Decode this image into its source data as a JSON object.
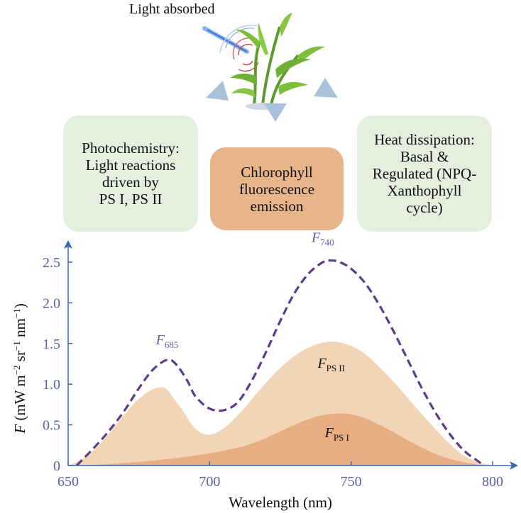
{
  "header": {
    "light_label": "Light absorbed"
  },
  "boxes": {
    "photochemistry": "Photochemistry:\nLight reactions\ndriven by\nPS I, PS II",
    "fluorescence": "Chlorophyll\nfluorescence\nemission",
    "heat": "Heat dissipation:\nBasal &\nRegulated (NPQ-\nXanthophyll\ncycle)"
  },
  "colors": {
    "axis": "#3a66b0",
    "tick_label": "#5b5fa6",
    "total_dash": "#5a3e8e",
    "ps2_fill": "#f2d4b6",
    "ps1_fill": "#e7ae82",
    "green_box": "#e5efdd",
    "orange_box": "#e8b48a"
  },
  "chart_data": {
    "type": "area",
    "xlabel": "Wavelength (nm)",
    "ylabel_symbol": "F",
    "ylabel_text": " (mW m",
    "ylabel_sup1": "−2",
    "ylabel_mid1": " sr",
    "ylabel_sup2": "−1",
    "ylabel_mid2": " nm",
    "ylabel_sup3": "−1",
    "ylabel_end": ")",
    "xlim": [
      650,
      800
    ],
    "ylim": [
      0,
      2.7
    ],
    "xticks": [
      650,
      700,
      750,
      800
    ],
    "yticks": [
      0,
      0.5,
      1.0,
      1.5,
      2.0,
      2.5
    ],
    "ytick_labels": [
      "0",
      "0.5",
      "1.0",
      "1.5",
      "2.0",
      "2.5"
    ],
    "grid": false,
    "series": [
      {
        "name": "F PS II",
        "base": "F",
        "sub": "PS II",
        "x": [
          650,
          655,
          660,
          665,
          670,
          675,
          680,
          683,
          685,
          690,
          695,
          700,
          705,
          710,
          715,
          720,
          725,
          730,
          735,
          740,
          745,
          750,
          755,
          760,
          765,
          770,
          775,
          780,
          785,
          790,
          795,
          800
        ],
        "y": [
          0.0,
          0.08,
          0.22,
          0.42,
          0.63,
          0.82,
          0.94,
          0.96,
          0.93,
          0.7,
          0.45,
          0.38,
          0.46,
          0.62,
          0.82,
          1.02,
          1.2,
          1.35,
          1.45,
          1.51,
          1.52,
          1.47,
          1.37,
          1.21,
          1.03,
          0.83,
          0.63,
          0.44,
          0.26,
          0.12,
          0.04,
          0.0
        ]
      },
      {
        "name": "F PS I",
        "base": "F",
        "sub": "PS I",
        "x": [
          650,
          660,
          670,
          680,
          690,
          700,
          710,
          715,
          720,
          725,
          730,
          735,
          740,
          745,
          750,
          755,
          760,
          765,
          770,
          775,
          780,
          785,
          790,
          795,
          800
        ],
        "y": [
          0.0,
          0.01,
          0.03,
          0.06,
          0.1,
          0.15,
          0.22,
          0.27,
          0.34,
          0.42,
          0.5,
          0.57,
          0.62,
          0.64,
          0.63,
          0.58,
          0.5,
          0.41,
          0.31,
          0.22,
          0.14,
          0.08,
          0.04,
          0.01,
          0.0
        ]
      },
      {
        "name": "total",
        "style": "dashed",
        "x": [
          653,
          660,
          665,
          670,
          675,
          680,
          685,
          688,
          692,
          695,
          700,
          705,
          710,
          715,
          720,
          725,
          730,
          735,
          740,
          743,
          746,
          750,
          755,
          760,
          765,
          770,
          775,
          780,
          785,
          790,
          795,
          797
        ],
        "y": [
          0.0,
          0.25,
          0.45,
          0.68,
          0.95,
          1.18,
          1.3,
          1.25,
          1.05,
          0.85,
          0.7,
          0.68,
          0.78,
          1.05,
          1.4,
          1.78,
          2.12,
          2.36,
          2.5,
          2.52,
          2.5,
          2.42,
          2.24,
          1.97,
          1.65,
          1.3,
          0.95,
          0.64,
          0.38,
          0.18,
          0.05,
          0.0
        ]
      }
    ],
    "annotations": [
      {
        "base": "F",
        "sub": "685",
        "x": 685,
        "y": 1.49
      },
      {
        "base": "F",
        "sub": "740",
        "x": 740,
        "y": 2.75
      },
      {
        "base": "F",
        "sub": "PS II",
        "x": 743,
        "y": 1.2
      },
      {
        "base": "F",
        "sub": "PS I",
        "x": 745,
        "y": 0.35
      }
    ]
  }
}
